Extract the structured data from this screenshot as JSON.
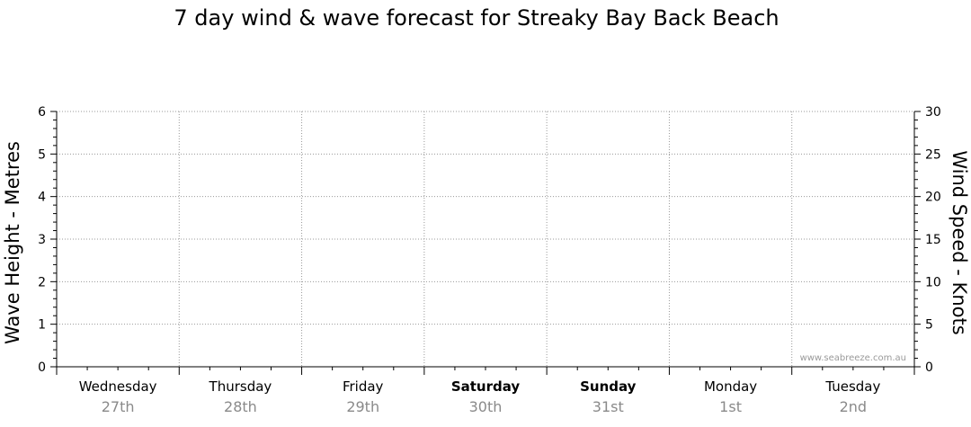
{
  "chart_data": {
    "type": "line",
    "title": "7 day wind & wave forecast for Streaky Bay Back Beach",
    "y_left_label": "Wave Height - Metres",
    "y_right_label": "Wind Speed - Knots",
    "y_left_range": [
      0,
      6
    ],
    "y_left_ticks": [
      "0",
      "1",
      "2",
      "3",
      "4",
      "5",
      "6"
    ],
    "y_right_range": [
      0,
      30
    ],
    "y_right_ticks": [
      "0",
      "5",
      "10",
      "15",
      "20",
      "25",
      "30"
    ],
    "days": [
      {
        "day": "Wednesday",
        "date": "27th",
        "bold": false
      },
      {
        "day": "Thursday",
        "date": "28th",
        "bold": false
      },
      {
        "day": "Friday",
        "date": "29th",
        "bold": false
      },
      {
        "day": "Saturday",
        "date": "30th",
        "bold": true
      },
      {
        "day": "Sunday",
        "date": "31st",
        "bold": true
      },
      {
        "day": "Monday",
        "date": "1st",
        "bold": false
      },
      {
        "day": "Tuesday",
        "date": "2nd",
        "bold": false
      }
    ],
    "series": [],
    "grid": true,
    "credit": "www.seabreeze.com.au"
  }
}
